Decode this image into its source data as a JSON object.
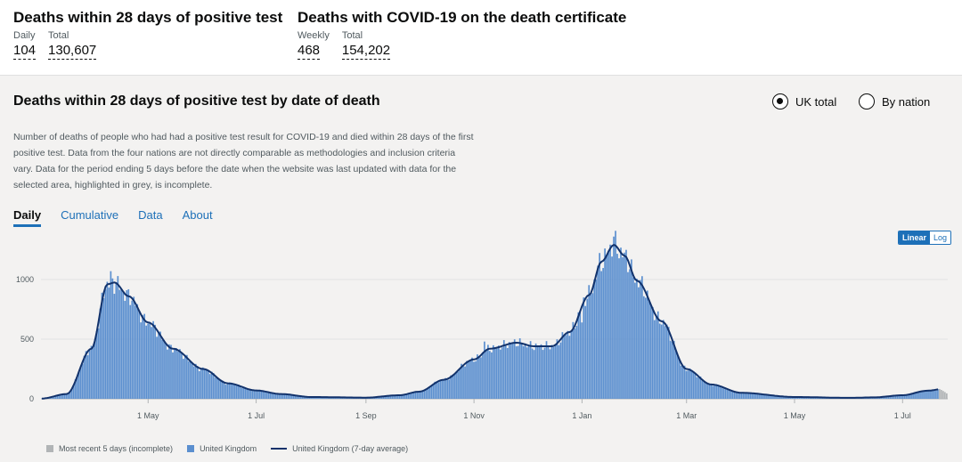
{
  "summary": [
    {
      "title": "Deaths within 28 days of positive test",
      "m1_label": "Daily",
      "m1_value": "104",
      "m2_label": "Total",
      "m2_value": "130,607"
    },
    {
      "title": "Deaths with COVID-19 on the death certificate",
      "m1_label": "Weekly",
      "m1_value": "468",
      "m2_label": "Total",
      "m2_value": "154,202"
    }
  ],
  "card": {
    "title": "Deaths within 28 days of positive test by date of death",
    "radio_uk": "UK total",
    "radio_nation": "By nation",
    "description": "Number of deaths of people who had had a positive test result for COVID-19 and died within 28 days of the first positive test. Data from the four nations are not directly comparable as methodologies and inclusion criteria vary. Data for the period ending 5 days before the date when the website was last updated with data for the selected area, highlighted in grey, is incomplete.",
    "tabs": [
      "Daily",
      "Cumulative",
      "Data",
      "About"
    ],
    "scale_linear": "Linear",
    "scale_log": "Log"
  },
  "colors": {
    "bar": "#5b8fcf",
    "line": "#12326b",
    "incomplete": "#b1b4b6",
    "link": "#1d70b8"
  },
  "chart_data": {
    "type": "bar",
    "x_range": [
      "2020-03-02",
      "2021-07-26"
    ],
    "ylim": [
      0,
      1400
    ],
    "y_ticks": [
      0,
      500,
      1000
    ],
    "x_tick_labels": [
      "1 May",
      "1 Jul",
      "1 Sep",
      "1 Nov",
      "1 Jan",
      "1 Mar",
      "1 May",
      "1 Jul"
    ],
    "x_tick_dates": [
      "2020-05-01",
      "2020-07-01",
      "2020-09-01",
      "2020-11-01",
      "2021-01-01",
      "2021-03-01",
      "2021-05-01",
      "2021-07-01"
    ],
    "series": [
      {
        "name": "United Kingdom",
        "kind": "daily bars"
      },
      {
        "name": "United Kingdom (7-day average)",
        "kind": "line"
      }
    ],
    "incomplete_series": "Most recent 5 days (incomplete)",
    "incomplete_days": 5,
    "legend": [
      "Most recent 5 days (incomplete)",
      "United Kingdom",
      "United Kingdom (7-day average)"
    ],
    "avg_keypoints": [
      [
        "2020-03-02",
        2
      ],
      [
        "2020-03-16",
        40
      ],
      [
        "2020-03-30",
        420
      ],
      [
        "2020-04-08",
        960
      ],
      [
        "2020-04-12",
        975
      ],
      [
        "2020-04-20",
        860
      ],
      [
        "2020-05-01",
        640
      ],
      [
        "2020-05-15",
        420
      ],
      [
        "2020-06-01",
        250
      ],
      [
        "2020-06-15",
        130
      ],
      [
        "2020-07-01",
        70
      ],
      [
        "2020-07-15",
        40
      ],
      [
        "2020-08-01",
        15
      ],
      [
        "2020-09-01",
        10
      ],
      [
        "2020-09-20",
        30
      ],
      [
        "2020-10-01",
        60
      ],
      [
        "2020-10-15",
        160
      ],
      [
        "2020-11-01",
        330
      ],
      [
        "2020-11-10",
        420
      ],
      [
        "2020-11-25",
        470
      ],
      [
        "2020-12-05",
        440
      ],
      [
        "2020-12-15",
        440
      ],
      [
        "2020-12-25",
        560
      ],
      [
        "2021-01-05",
        870
      ],
      [
        "2021-01-12",
        1150
      ],
      [
        "2021-01-19",
        1290
      ],
      [
        "2021-01-25",
        1200
      ],
      [
        "2021-02-01",
        990
      ],
      [
        "2021-02-15",
        650
      ],
      [
        "2021-03-01",
        250
      ],
      [
        "2021-03-15",
        120
      ],
      [
        "2021-04-01",
        50
      ],
      [
        "2021-05-01",
        15
      ],
      [
        "2021-06-01",
        8
      ],
      [
        "2021-06-15",
        12
      ],
      [
        "2021-07-01",
        30
      ],
      [
        "2021-07-15",
        68
      ],
      [
        "2021-07-26",
        88
      ]
    ],
    "spike_days": [
      [
        "2020-04-10",
        1070
      ],
      [
        "2021-01-19",
        1360
      ],
      [
        "2020-11-07",
        480
      ],
      [
        "2021-01-01",
        640
      ]
    ]
  },
  "latest": {
    "daily": 104
  }
}
